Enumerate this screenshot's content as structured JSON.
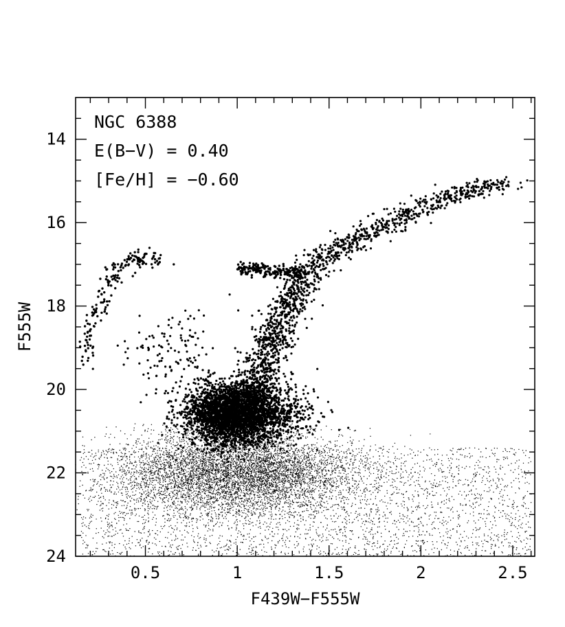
{
  "chart_data": {
    "type": "scatter",
    "title": "",
    "xlabel": "F439W−F555W",
    "ylabel": "F555W",
    "xlim": [
      0.12,
      2.62
    ],
    "ylim": [
      24,
      13
    ],
    "y_inverted": true,
    "x_ticks": [
      0.5,
      1,
      1.5,
      2,
      2.5
    ],
    "x_tick_labels": [
      "0.5",
      "1",
      "1.5",
      "2",
      "2.5"
    ],
    "y_ticks": [
      14,
      16,
      18,
      20,
      22,
      24
    ],
    "y_tick_labels": [
      "14",
      "16",
      "18",
      "20",
      "22",
      "24"
    ],
    "x_minor_step": 0.1,
    "y_minor_step": 0.5,
    "grid": false,
    "annotations": [
      "NGC 6388",
      "E(B−V) = 0.40",
      "[Fe/H] = −0.60"
    ],
    "marker_color": "#000000",
    "series": [
      {
        "component": "main-sequence-faint",
        "approx_points": 9000,
        "color_range": [
          0.15,
          2.6
        ],
        "mag_range": [
          20.8,
          24.0
        ],
        "center": [
          1.0,
          22.0
        ],
        "spread": [
          0.32,
          0.85
        ]
      },
      {
        "component": "turnoff-subgiant-clump",
        "approx_points": 3500,
        "color_range": [
          0.7,
          1.35
        ],
        "mag_range": [
          19.6,
          21.5
        ],
        "center": [
          0.95,
          20.6
        ],
        "spread": [
          0.12,
          0.35
        ]
      },
      {
        "component": "red-giant-branch",
        "points": [
          [
            1.07,
            20.2
          ],
          [
            1.13,
            19.6
          ],
          [
            1.18,
            19.0
          ],
          [
            1.22,
            18.5
          ],
          [
            1.27,
            18.0
          ],
          [
            1.34,
            17.5
          ],
          [
            1.42,
            17.0
          ],
          [
            1.55,
            16.6
          ],
          [
            1.7,
            16.3
          ],
          [
            1.88,
            15.9
          ],
          [
            2.05,
            15.55
          ],
          [
            2.25,
            15.25
          ],
          [
            2.45,
            15.05
          ]
        ],
        "approx_points": 1500,
        "width": 0.06
      },
      {
        "component": "red-horizontal-branch",
        "center": [
          1.17,
          17.15
        ],
        "extent": [
          [
            1.0,
            17.0
          ],
          [
            1.36,
            17.35
          ]
        ],
        "approx_points": 200
      },
      {
        "component": "blue-horizontal-branch",
        "points": [
          [
            0.17,
            19.3
          ],
          [
            0.2,
            18.7
          ],
          [
            0.24,
            18.1
          ],
          [
            0.28,
            17.6
          ],
          [
            0.33,
            17.2
          ],
          [
            0.4,
            16.95
          ],
          [
            0.48,
            16.85
          ],
          [
            0.58,
            16.85
          ]
        ],
        "approx_points": 180
      },
      {
        "component": "blue-stragglers-field",
        "center": [
          0.62,
          19.0
        ],
        "spread": [
          0.12,
          0.5
        ],
        "approx_points": 120
      }
    ]
  }
}
